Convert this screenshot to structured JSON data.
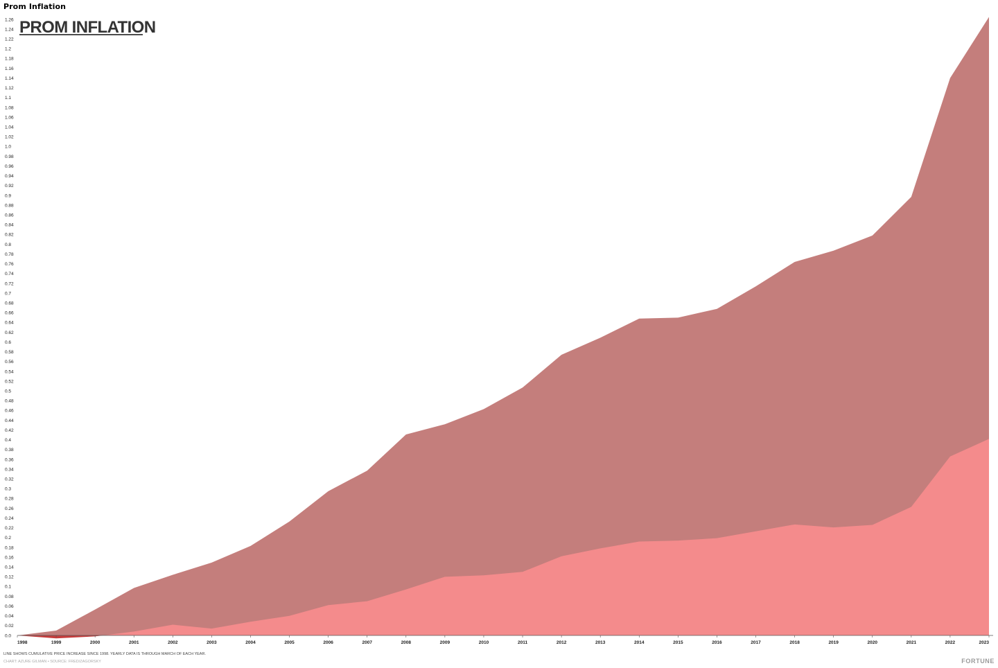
{
  "page": {
    "heading": "Prom Inflation"
  },
  "chart_data": {
    "type": "area",
    "title": "PROM INFLATION",
    "note": "LINE SHOWS CUMULATIVE PRICE INCREASE SINCE 1998. YEARLY DATA IS THROUGH MARCH OF EACH YEAR.",
    "credit": "CHART: AZURE GILMAN • SOURCE: FRED/ZAGORSKY",
    "brand": "FORTUNE",
    "x": [
      "1998",
      "1999",
      "2000",
      "2001",
      "2002",
      "2003",
      "2004",
      "2005",
      "2006",
      "2007",
      "2008",
      "2009",
      "2010",
      "2011",
      "2012",
      "2013",
      "2014",
      "2015",
      "2016",
      "2017",
      "2018",
      "2019",
      "2020",
      "2021",
      "2022",
      "2023"
    ],
    "series": [
      {
        "values": [
          0.0,
          0.01,
          0.053,
          0.097,
          0.124,
          0.149,
          0.183,
          0.233,
          0.295,
          0.337,
          0.411,
          0.432,
          0.463,
          0.507,
          0.574,
          0.609,
          0.648,
          0.65,
          0.668,
          0.714,
          0.764,
          0.787,
          0.818,
          0.897,
          1.14,
          1.265
        ],
        "color": "#c47e7c"
      },
      {
        "values": [
          0.0,
          -0.006,
          -0.002,
          0.008,
          0.022,
          0.014,
          0.028,
          0.04,
          0.062,
          0.07,
          0.094,
          0.12,
          0.123,
          0.13,
          0.162,
          0.178,
          0.192,
          0.194,
          0.199,
          0.213,
          0.227,
          0.221,
          0.226,
          0.263,
          0.366,
          0.402
        ],
        "color": "#f48b8c",
        "negative_color": "#c73c3c"
      }
    ],
    "ylim": [
      0,
      1.26
    ],
    "ytick_step": 0.02,
    "grid": false,
    "legend": "none"
  }
}
